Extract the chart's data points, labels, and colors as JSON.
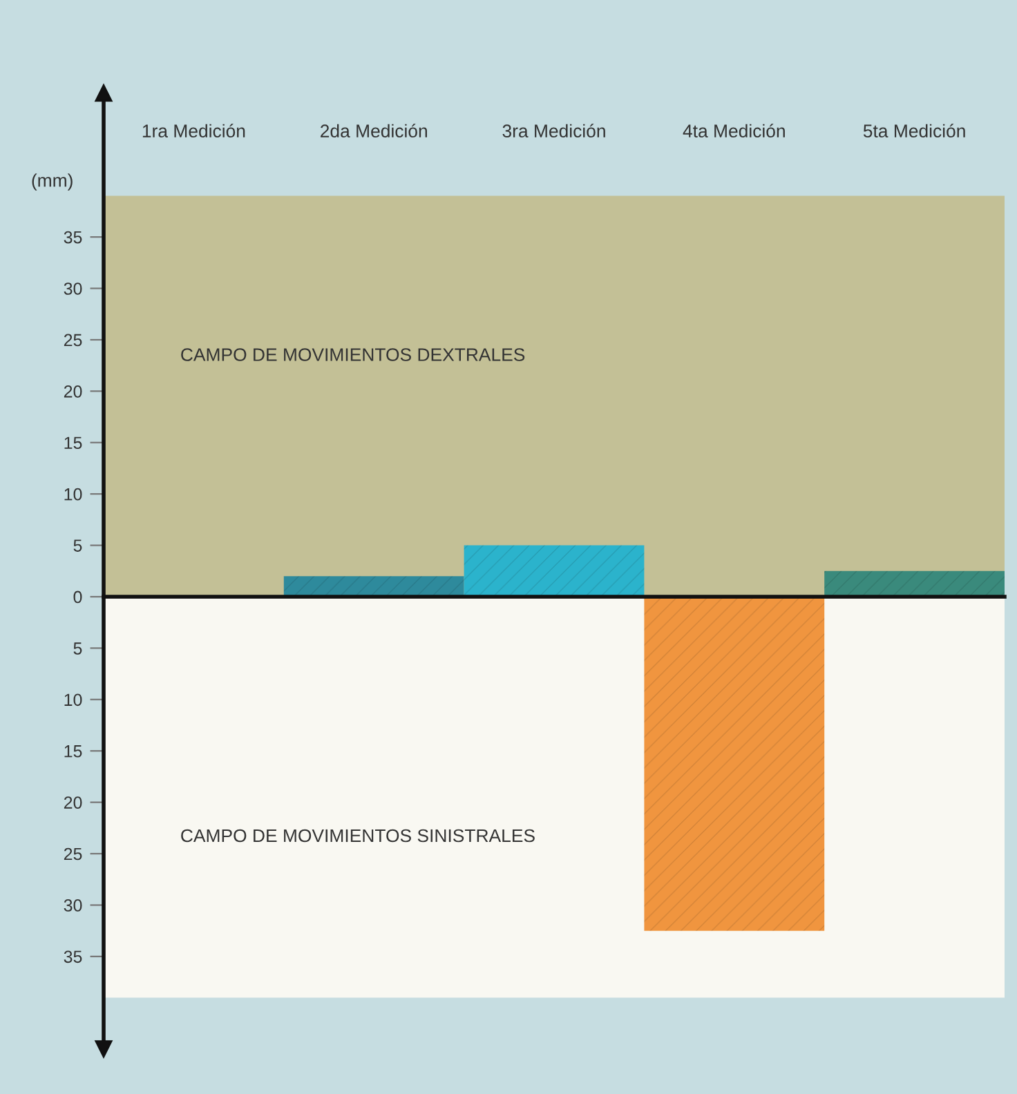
{
  "chart_data": {
    "type": "bar",
    "categories": [
      "1ra Medición",
      "2da Medición",
      "3ra Medición",
      "4ta Medición",
      "5ta Medición"
    ],
    "values": [
      null,
      2,
      5,
      -32.5,
      2.5
    ],
    "colors": [
      null,
      "#2e8a9c",
      "#2bb3cc",
      "#f0953f",
      "#3a8a7c"
    ],
    "ylabel": "(mm)",
    "ylim": [
      -44,
      49
    ],
    "yticks": [
      35,
      30,
      25,
      20,
      15,
      10,
      5,
      0,
      {
        "value": -5,
        "label": "5"
      },
      {
        "value": -10,
        "label": "10"
      },
      {
        "value": -15,
        "label": "15"
      },
      {
        "value": -20,
        "label": "20"
      },
      {
        "value": -25,
        "label": "25"
      },
      {
        "value": -30,
        "label": "30"
      },
      {
        "value": -35,
        "label": "35"
      }
    ],
    "bands": [
      {
        "axis": "y",
        "from": 0,
        "to": 39,
        "label": "CAMPO DE MOVIMIENTOS DEXTRALES",
        "color": "#c3c096"
      },
      {
        "axis": "y",
        "from": -39,
        "to": 0,
        "label": "CAMPO DE MOVIMIENTOS SINISTRALES",
        "color": "#f9f8f2"
      }
    ]
  }
}
